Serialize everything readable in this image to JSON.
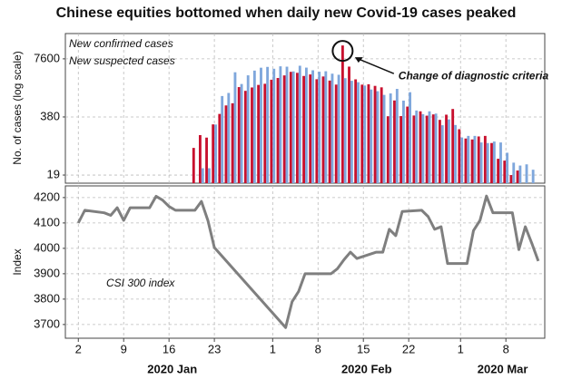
{
  "title": "Chinese equities bottomed when daily new Covid-19 cases peaked",
  "chart_data": [
    {
      "type": "bar",
      "y_label": "No. of cases (log scale)",
      "log_scale": true,
      "grid": true,
      "legend": "upper left",
      "xlim": [
        "2019-12-31",
        "2020-03-14"
      ],
      "ylim": [
        12.5,
        28000
      ],
      "yticks": [
        19,
        380,
        7600
      ],
      "x": [
        "2020-01-20",
        "2020-01-21",
        "2020-01-22",
        "2020-01-23",
        "2020-01-24",
        "2020-01-25",
        "2020-01-26",
        "2020-01-27",
        "2020-01-28",
        "2020-01-29",
        "2020-01-30",
        "2020-01-31",
        "2020-02-01",
        "2020-02-02",
        "2020-02-03",
        "2020-02-04",
        "2020-02-05",
        "2020-02-06",
        "2020-02-07",
        "2020-02-08",
        "2020-02-09",
        "2020-02-10",
        "2020-02-11",
        "2020-02-12",
        "2020-02-13",
        "2020-02-14",
        "2020-02-15",
        "2020-02-16",
        "2020-02-17",
        "2020-02-18",
        "2020-02-19",
        "2020-02-20",
        "2020-02-21",
        "2020-02-22",
        "2020-02-23",
        "2020-02-24",
        "2020-02-25",
        "2020-02-26",
        "2020-02-27",
        "2020-02-28",
        "2020-02-29",
        "2020-03-01",
        "2020-03-02",
        "2020-03-03",
        "2020-03-04",
        "2020-03-05",
        "2020-03-06",
        "2020-03-07",
        "2020-03-08",
        "2020-03-09",
        "2020-03-10",
        "2020-03-11",
        "2020-03-12"
      ],
      "series": [
        {
          "name": "New confirmed cases",
          "color": "#c8102e",
          "values": [
            77,
            149,
            131,
            259,
            444,
            688,
            769,
            1771,
            1459,
            1737,
            1982,
            2102,
            2590,
            2829,
            3235,
            3887,
            3694,
            3143,
            3399,
            2656,
            3062,
            2478,
            2015,
            15152,
            5090,
            2641,
            2009,
            2048,
            1886,
            1749,
            394,
            889,
            397,
            648,
            409,
            508,
            406,
            433,
            327,
            427,
            573,
            202,
            125,
            119,
            139,
            143,
            99,
            44,
            40,
            19,
            24,
            null,
            null
          ]
        },
        {
          "name": "New suspected cases",
          "color": "#7fa7dc",
          "values": [
            null,
            27,
            27,
            257,
            1118,
            1309,
            3806,
            2077,
            3248,
            4148,
            4812,
            5019,
            4562,
            5173,
            5072,
            3971,
            5328,
            4833,
            4214,
            3916,
            4008,
            3536,
            3342,
            2807,
            2450,
            2277,
            1918,
            1563,
            1432,
            1185,
            1277,
            1614,
            882,
            1361,
            530,
            439,
            508,
            452,
            248,
            335,
            251,
            132,
            143,
            143,
            102,
            99,
            107,
            102,
            60,
            36,
            31,
            33,
            25
          ]
        }
      ],
      "annotations": [
        {
          "text": "Change of diagnostic criteria",
          "x": "2020-02-12"
        }
      ]
    },
    {
      "type": "line",
      "y_label": "Index",
      "grid": true,
      "xlim": [
        "2019-12-31",
        "2020-03-14"
      ],
      "ylim": [
        3646,
        4246
      ],
      "yticks": [
        3700,
        3800,
        3900,
        4000,
        4100,
        4200
      ],
      "xticks": [
        {
          "value": "2020-01-02",
          "label": "2"
        },
        {
          "value": "2020-01-09",
          "label": "9"
        },
        {
          "value": "2020-01-16",
          "label": "16"
        },
        {
          "value": "2020-01-23",
          "label": "23"
        },
        {
          "value": "2020-02-01",
          "label": "1"
        },
        {
          "value": "2020-02-08",
          "label": "8"
        },
        {
          "value": "2020-02-15",
          "label": "15"
        },
        {
          "value": "2020-02-22",
          "label": "22"
        },
        {
          "value": "2020-03-01",
          "label": "1"
        },
        {
          "value": "2020-03-08",
          "label": "8"
        }
      ],
      "months": [
        {
          "value": "2020-01",
          "label": "2020 Jan"
        },
        {
          "value": "2020-02",
          "label": "2020 Feb"
        },
        {
          "value": "2020-03",
          "label": "2020 Mar"
        }
      ],
      "x": [
        "2020-01-02",
        "2020-01-03",
        "2020-01-06",
        "2020-01-07",
        "2020-01-08",
        "2020-01-09",
        "2020-01-10",
        "2020-01-13",
        "2020-01-14",
        "2020-01-15",
        "2020-01-16",
        "2020-01-17",
        "2020-01-20",
        "2020-01-21",
        "2020-01-22",
        "2020-01-23",
        "2020-02-03",
        "2020-02-04",
        "2020-02-05",
        "2020-02-06",
        "2020-02-07",
        "2020-02-10",
        "2020-02-11",
        "2020-02-12",
        "2020-02-13",
        "2020-02-14",
        "2020-02-17",
        "2020-02-18",
        "2020-02-19",
        "2020-02-20",
        "2020-02-21",
        "2020-02-24",
        "2020-02-25",
        "2020-02-26",
        "2020-02-27",
        "2020-02-28",
        "2020-03-02",
        "2020-03-03",
        "2020-03-04",
        "2020-03-05",
        "2020-03-06",
        "2020-03-09",
        "2020-03-10",
        "2020-03-11",
        "2020-03-12",
        "2020-03-13"
      ],
      "series": [
        {
          "name": "CSI 300 index",
          "color": "#7f7f7f",
          "values": [
            4100,
            4150,
            4140,
            4130,
            4160,
            4110,
            4160,
            4160,
            4205,
            4190,
            4165,
            4150,
            4150,
            4185,
            4110,
            4003,
            3688,
            3790,
            3830,
            3900,
            3900,
            3900,
            3920,
            3955,
            3985,
            3960,
            3985,
            3985,
            4075,
            4050,
            4145,
            4150,
            4125,
            4075,
            4085,
            3940,
            3940,
            4070,
            4110,
            4206,
            4140,
            4140,
            3995,
            4085,
            4020,
            3950
          ]
        }
      ]
    }
  ]
}
